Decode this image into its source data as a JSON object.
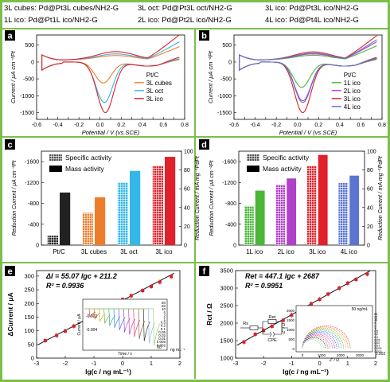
{
  "figure_legend": [
    "3L cubes: Pd@Pt3L cubes/NH2-G",
    "3L oct: Pd@Pt3L oct/NH2-G",
    "3L ico: Pd@Pt3L ico/NH2-G",
    "1L ico: Pd@Pt1L ico/NH2-G",
    "2L ico: Pd@Pt2L ico/NH2-G",
    "4L ico: Pd@Pt4L ico/NH2-G"
  ],
  "colors": {
    "border": "#7bbf4a",
    "PtC": "#222222",
    "3L cubes": "#ee7d2b",
    "3L oct": "#33b7e8",
    "3L ico": "#e0202a",
    "1L ico": "#4cb63a",
    "2L ico": "#b040c8",
    "4L ico": "#5a74d0",
    "fit": "#111111"
  },
  "chart_data": [
    {
      "panel": "a",
      "type": "line",
      "xlabel": "Potential / V (vs.SCE)",
      "ylabel": "Current / μA cm⁻²Pt",
      "xlim": [
        -0.6,
        0.8
      ],
      "ylim": [
        -1700,
        800
      ],
      "xticks": [
        -0.6,
        -0.5,
        -0.4,
        -0.3,
        -0.2,
        -0.1,
        0.0,
        0.1,
        0.2,
        0.3,
        0.4,
        0.5,
        0.6,
        0.7,
        0.8
      ],
      "xtick_labels": [
        "-0.6",
        "-0.5",
        "-0.4",
        "-0.3",
        "-0.2",
        "-0.1",
        "0.0",
        "0.1",
        "0.2",
        "0.3",
        "0.4",
        "0.5",
        "0.6",
        "0.7",
        "0.8"
      ],
      "yticks": [
        -1500,
        -1000,
        -500,
        0,
        500
      ],
      "ytick_labels": [
        "-1500",
        "-1000",
        "-500",
        "0",
        "500"
      ],
      "legend": [
        "Pt/C",
        "3L cubes",
        "3L oct",
        "3L ico"
      ],
      "legend_position": "center-right",
      "series": [
        {
          "name": "Pt/C",
          "peak_potential": 0.03,
          "peak_current": -180,
          "forward_max": 160
        },
        {
          "name": "3L cubes",
          "peak_potential": 0.03,
          "peak_current": -620,
          "forward_max": 330
        },
        {
          "name": "3L oct",
          "peak_potential": 0.04,
          "peak_current": -1200,
          "forward_max": 450
        },
        {
          "name": "3L ico",
          "peak_potential": 0.05,
          "peak_current": -1500,
          "forward_max": 620
        }
      ]
    },
    {
      "panel": "b",
      "type": "line",
      "xlabel": "Potential / V (vs.SCE)",
      "ylabel": "Current / μA cm⁻²Pt",
      "xlim": [
        -0.6,
        0.8
      ],
      "ylim": [
        -1700,
        800
      ],
      "xticks": [
        -0.6,
        -0.5,
        -0.4,
        -0.3,
        -0.2,
        -0.1,
        0.0,
        0.1,
        0.2,
        0.3,
        0.4,
        0.5,
        0.6,
        0.7,
        0.8
      ],
      "xtick_labels": [
        "-0.6",
        "-0.5",
        "-0.4",
        "-0.3",
        "-0.2",
        "-0.1",
        "0.0",
        "0.1",
        "0.2",
        "0.3",
        "0.4",
        "0.5",
        "0.6",
        "0.7",
        "0.8"
      ],
      "yticks": [
        -1500,
        -1000,
        -500,
        0,
        500
      ],
      "ytick_labels": [
        "-1500",
        "-1000",
        "-500",
        "0",
        "500"
      ],
      "legend": [
        "Pt/C",
        "1L ico",
        "2L ico",
        "3L ico",
        "4L ico"
      ],
      "legend_position": "center-right",
      "series": [
        {
          "name": "Pt/C",
          "peak_potential": 0.03,
          "peak_current": -180,
          "forward_max": 160
        },
        {
          "name": "1L ico",
          "peak_potential": 0.04,
          "peak_current": -750,
          "forward_max": 350
        },
        {
          "name": "2L ico",
          "peak_potential": 0.05,
          "peak_current": -1150,
          "forward_max": 450
        },
        {
          "name": "3L ico",
          "peak_potential": 0.05,
          "peak_current": -1500,
          "forward_max": 600
        },
        {
          "name": "4L ico",
          "peak_potential": 0.05,
          "peak_current": -1200,
          "forward_max": 500
        }
      ]
    },
    {
      "panel": "c",
      "type": "bar",
      "categories": [
        "Pt/C",
        "3L cubes",
        "3L oct",
        "3L ico"
      ],
      "ylabel": "Reduction Current / μA cm⁻²Pt",
      "y2label": "Reduction Current / mA mg⁻¹PdPt",
      "ylim": [
        0,
        -1800
      ],
      "y2lim": [
        0,
        100
      ],
      "yticks": [
        0,
        -400,
        -800,
        -1200,
        -1600
      ],
      "ytick_labels": [
        "0",
        "-400",
        "-800",
        "-1200",
        "-1600"
      ],
      "y2ticks": [
        0,
        20,
        40,
        60,
        80,
        100
      ],
      "y2tick_labels": [
        "0",
        "20",
        "40",
        "60",
        "80",
        "100"
      ],
      "legend": [
        "Specific activity",
        "Mass activity"
      ],
      "series": [
        {
          "name": "Specific activity",
          "values": [
            -180,
            -620,
            -1200,
            -1520
          ]
        },
        {
          "name": "Mass activity",
          "values": [
            56,
            51,
            79,
            94
          ]
        }
      ]
    },
    {
      "panel": "d",
      "type": "bar",
      "categories": [
        "1L ico",
        "2L ico",
        "3L ico",
        "4L ico"
      ],
      "ylabel": "Reduction Current / μA cm⁻²Pt",
      "y2label": "Reduction Current / mA mg⁻¹PdPt",
      "ylim": [
        0,
        -1800
      ],
      "y2lim": [
        0,
        100
      ],
      "yticks": [
        0,
        -400,
        -800,
        -1200,
        -1600
      ],
      "ytick_labels": [
        "0",
        "-400",
        "-800",
        "-1200",
        "-1600"
      ],
      "y2ticks": [
        0,
        20,
        40,
        60,
        80,
        100
      ],
      "y2tick_labels": [
        "0",
        "20",
        "40",
        "60",
        "80",
        "100"
      ],
      "legend": [
        "Specific activity",
        "Mass activity"
      ],
      "series": [
        {
          "name": "Specific activity",
          "values": [
            -750,
            -1160,
            -1520,
            -1190
          ]
        },
        {
          "name": "Mass activity",
          "values": [
            58,
            71,
            96,
            74
          ]
        }
      ]
    },
    {
      "panel": "e",
      "type": "scatter",
      "xlabel": "lg(c / ng mL⁻¹)",
      "ylabel": "ΔCurrent / μA",
      "xlim": [
        -3,
        2
      ],
      "ylim": [
        0,
        320
      ],
      "xticks": [
        -3,
        -2,
        -1,
        0,
        1,
        2
      ],
      "xtick_labels": [
        "-3",
        "-2",
        "-1",
        "0",
        "1",
        "2"
      ],
      "yticks": [
        0,
        50,
        100,
        150,
        200,
        250,
        300
      ],
      "ytick_labels": [
        "0",
        "50",
        "100",
        "150",
        "200",
        "250",
        "300"
      ],
      "equation": "ΔI = 55.07 lgc + 211.2",
      "r2": "R² = 0.9936",
      "fit": {
        "slope": 55.07,
        "intercept": 211.2
      },
      "x": [
        -2.7,
        -2.3,
        -2.0,
        -1.7,
        -1.3,
        -1.0,
        -0.7,
        -0.3,
        0.0,
        0.3,
        0.7,
        1.0,
        1.3,
        1.7
      ],
      "y": [
        64,
        83,
        99,
        117,
        138,
        153,
        178,
        198,
        214,
        228,
        247,
        262,
        278,
        298
      ],
      "inset": {
        "xlabel": "Time / s",
        "ylabel": "Current / μA",
        "xtick_labels": [
          "60"
        ],
        "ytick_labels": [
          "-0.002",
          "-0.004"
        ],
        "concentrations_label": "ng mL⁻¹",
        "concentrations": [
          "0.002",
          "0.005",
          "0.01",
          "0.02",
          "0.05",
          "0.1",
          "0.2",
          "0.5",
          "1",
          "2",
          "5",
          "10",
          "20",
          "50"
        ],
        "colors": [
          "#e04040",
          "#e07a30",
          "#d2b300",
          "#6cb33c",
          "#36a68e",
          "#3a8fd4",
          "#5c5cd6",
          "#9a4ad0",
          "#c847a9",
          "#e0407a",
          "#8a6a3a",
          "#3a3a3a",
          "#8fc0e0",
          "#a0d070"
        ]
      }
    },
    {
      "panel": "f",
      "type": "scatter",
      "xlabel": "lg(c / ng mL⁻¹)",
      "ylabel": "Rct / Ω",
      "xlim": [
        -3,
        2
      ],
      "ylim": [
        1000,
        3500
      ],
      "xticks": [
        -3,
        -2,
        -1,
        0,
        1,
        2
      ],
      "xtick_labels": [
        "-3",
        "-2",
        "-1",
        "0",
        "1",
        "2"
      ],
      "yticks": [
        1000,
        1500,
        2000,
        2500,
        3000,
        3500
      ],
      "ytick_labels": [
        "1000",
        "1500",
        "2000",
        "2500",
        "3000",
        "3500"
      ],
      "equation": "Ret = 447.1 lgc + 2687",
      "r2": "R² = 0.9951",
      "fit": {
        "slope": 447.1,
        "intercept": 2687
      },
      "x": [
        -2.7,
        -2.3,
        -2.0,
        -1.7,
        -1.3,
        -1.0,
        -0.7,
        -0.3,
        0.0,
        0.3,
        0.7,
        1.0,
        1.3,
        1.7
      ],
      "y": [
        1460,
        1680,
        1790,
        1910,
        2080,
        2230,
        2370,
        2550,
        2680,
        2830,
        3000,
        3140,
        3250,
        3400
      ],
      "inset": {
        "xlabel": "Z' / Ω",
        "ylabel": "-Z'' / Ω",
        "xtick_labels": [
          "0",
          "1000",
          "2000",
          "3000"
        ],
        "ytick_labels": [
          "0",
          "500",
          "1000",
          "1500",
          "2000"
        ],
        "top_label": "50 ng/mL",
        "bottom_label": "0.002",
        "concentrations": [
          "50",
          "20",
          "10",
          "5",
          "2",
          "1",
          "0.5",
          "0.2",
          "0.1",
          "0.05",
          "0.02",
          "0.01",
          "0.005",
          "0.002"
        ],
        "circuit_labels": [
          "Rs",
          "Ret",
          "CPE"
        ],
        "colors": [
          "#e04040",
          "#e07a30",
          "#d2b300",
          "#6cb33c",
          "#36a68e",
          "#3a8fd4",
          "#5c5cd6",
          "#9a4ad0",
          "#c847a9",
          "#e0407a",
          "#8a6a3a",
          "#3a3a3a",
          "#8fc0e0",
          "#a0d070"
        ]
      }
    }
  ]
}
